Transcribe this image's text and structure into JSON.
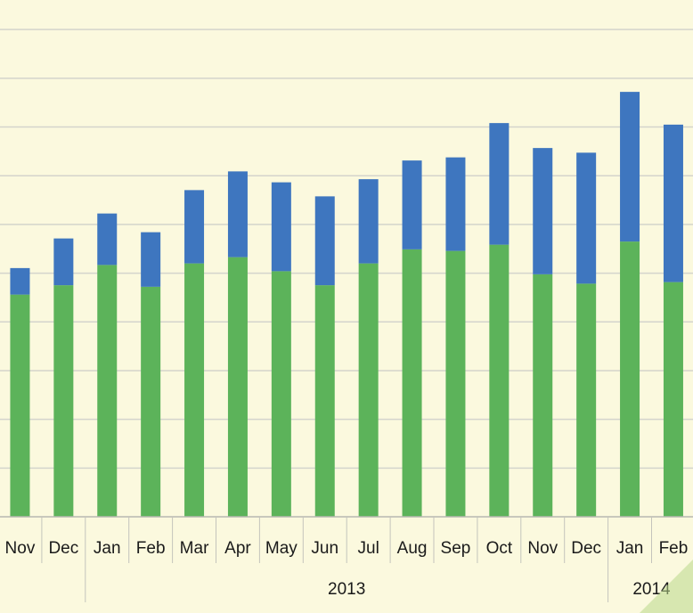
{
  "chart_data": {
    "type": "bar",
    "stacked": true,
    "categories": [
      "Nov",
      "Dec",
      "Jan",
      "Feb",
      "Mar",
      "Apr",
      "May",
      "Jun",
      "Jul",
      "Aug",
      "Sep",
      "Oct",
      "Nov",
      "Dec",
      "Jan",
      "Feb"
    ],
    "groups": [
      {
        "label": "2013",
        "from": 2,
        "to": 13
      },
      {
        "label": "2014",
        "from": 14,
        "to": 15
      }
    ],
    "series": [
      {
        "color": "#5cb35a",
        "values": [
          285,
          297,
          323,
          295,
          325,
          333,
          315,
          297,
          325,
          343,
          341,
          349,
          311,
          299,
          353,
          301
        ]
      },
      {
        "color": "#3e76bf",
        "values": [
          34,
          60,
          66,
          70,
          94,
          110,
          114,
          114,
          108,
          114,
          120,
          156,
          162,
          168,
          192,
          202
        ]
      }
    ],
    "ylim": [
      0,
      640
    ],
    "grid": true,
    "ytick_step": 62.5
  }
}
